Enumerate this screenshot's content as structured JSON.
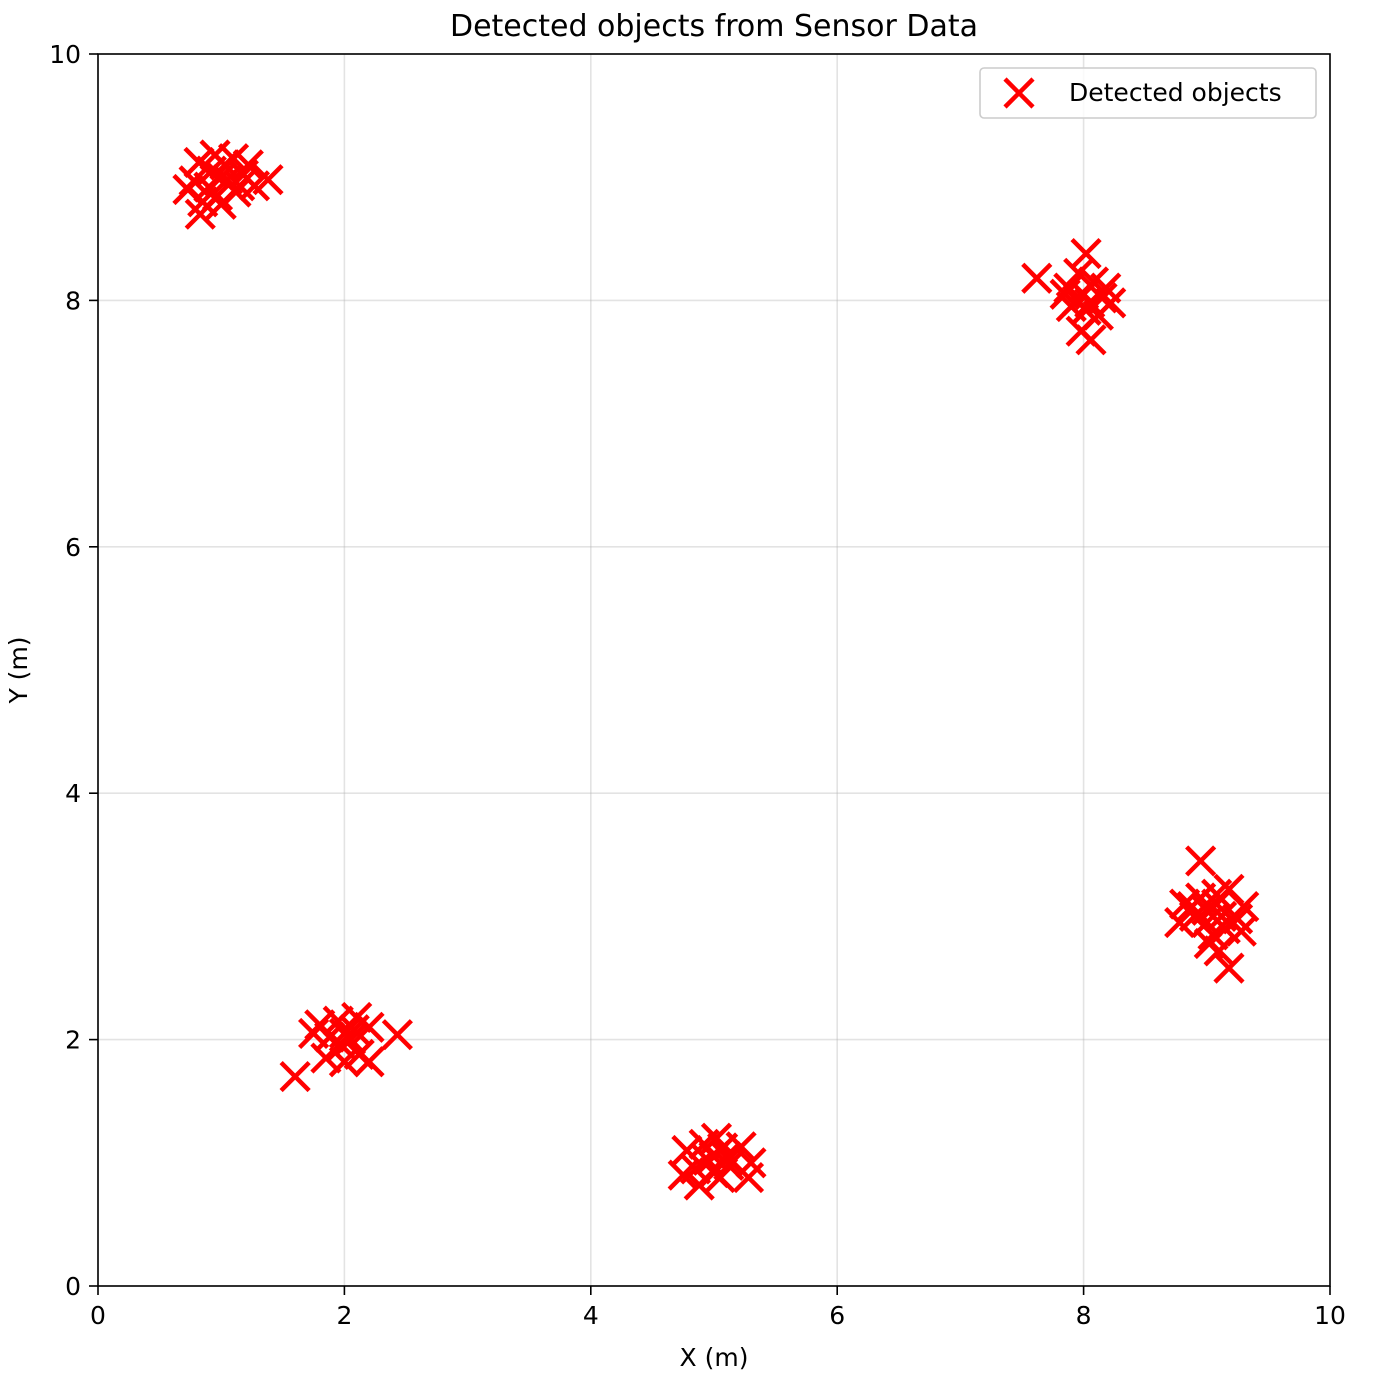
{
  "chart_data": {
    "type": "scatter",
    "title": "Detected objects from Sensor Data",
    "xlabel": "X (m)",
    "ylabel": "Y (m)",
    "xlim": [
      0,
      10
    ],
    "ylim": [
      0,
      10
    ],
    "x_ticks": [
      0,
      2,
      4,
      6,
      8,
      10
    ],
    "y_ticks": [
      0,
      2,
      4,
      6,
      8,
      10
    ],
    "x_tick_labels": [
      "0",
      "2",
      "4",
      "6",
      "8",
      "10"
    ],
    "y_tick_labels": [
      "0",
      "2",
      "4",
      "6",
      "8",
      "10"
    ],
    "grid": true,
    "legend_position": "top-right",
    "marker": "x",
    "series": [
      {
        "name": "Detected objects",
        "color": "#ff0000",
        "points": [
          [
            1.0,
            9.0
          ],
          [
            0.82,
            9.12
          ],
          [
            0.95,
            9.18
          ],
          [
            1.1,
            9.15
          ],
          [
            1.22,
            9.1
          ],
          [
            0.78,
            8.97
          ],
          [
            0.9,
            8.92
          ],
          [
            1.05,
            8.98
          ],
          [
            1.15,
            8.93
          ],
          [
            1.38,
            8.98
          ],
          [
            0.85,
            8.8
          ],
          [
            0.97,
            8.85
          ],
          [
            1.12,
            8.88
          ],
          [
            1.27,
            8.93
          ],
          [
            0.83,
            8.7
          ],
          [
            0.92,
            9.05
          ],
          [
            1.03,
            9.1
          ],
          [
            0.73,
            8.9
          ],
          [
            1.18,
            9.02
          ],
          [
            1.0,
            8.78
          ],
          [
            8.0,
            8.05
          ],
          [
            8.02,
            8.38
          ],
          [
            7.62,
            8.18
          ],
          [
            7.88,
            8.1
          ],
          [
            8.08,
            8.15
          ],
          [
            8.18,
            8.1
          ],
          [
            8.22,
            7.98
          ],
          [
            7.9,
            7.95
          ],
          [
            8.02,
            7.92
          ],
          [
            8.12,
            7.88
          ],
          [
            7.95,
            8.0
          ],
          [
            8.05,
            7.98
          ],
          [
            7.98,
            7.75
          ],
          [
            8.06,
            7.68
          ],
          [
            7.85,
            8.05
          ],
          [
            8.15,
            8.02
          ],
          [
            7.96,
            8.22
          ],
          [
            2.0,
            2.05
          ],
          [
            1.8,
            2.12
          ],
          [
            1.95,
            2.15
          ],
          [
            2.1,
            2.18
          ],
          [
            1.88,
            2.02
          ],
          [
            2.05,
            2.0
          ],
          [
            2.2,
            2.1
          ],
          [
            2.43,
            2.04
          ],
          [
            1.6,
            1.7
          ],
          [
            1.85,
            1.85
          ],
          [
            2.0,
            1.82
          ],
          [
            2.12,
            1.88
          ],
          [
            2.2,
            1.82
          ],
          [
            1.98,
            1.95
          ],
          [
            2.08,
            2.08
          ],
          [
            1.75,
            2.05
          ],
          [
            5.0,
            1.05
          ],
          [
            4.78,
            1.1
          ],
          [
            4.92,
            1.15
          ],
          [
            5.07,
            1.12
          ],
          [
            5.22,
            1.13
          ],
          [
            4.85,
            0.95
          ],
          [
            5.0,
            0.92
          ],
          [
            5.12,
            0.98
          ],
          [
            5.3,
            1.0
          ],
          [
            4.75,
            0.9
          ],
          [
            4.88,
            0.82
          ],
          [
            5.05,
            0.88
          ],
          [
            5.28,
            0.88
          ],
          [
            4.95,
            1.02
          ],
          [
            5.1,
            1.05
          ],
          [
            5.02,
            1.2
          ],
          [
            9.0,
            3.05
          ],
          [
            8.95,
            3.45
          ],
          [
            8.82,
            3.1
          ],
          [
            8.95,
            3.15
          ],
          [
            9.08,
            3.18
          ],
          [
            9.18,
            3.22
          ],
          [
            9.3,
            3.08
          ],
          [
            8.78,
            2.95
          ],
          [
            9.0,
            2.95
          ],
          [
            9.12,
            3.0
          ],
          [
            9.25,
            2.98
          ],
          [
            8.9,
            3.0
          ],
          [
            9.05,
            2.85
          ],
          [
            9.15,
            2.9
          ],
          [
            9.28,
            2.88
          ],
          [
            9.02,
            2.78
          ],
          [
            9.1,
            2.72
          ],
          [
            9.18,
            2.58
          ],
          [
            9.08,
            3.1
          ],
          [
            8.88,
            3.08
          ]
        ]
      }
    ]
  }
}
